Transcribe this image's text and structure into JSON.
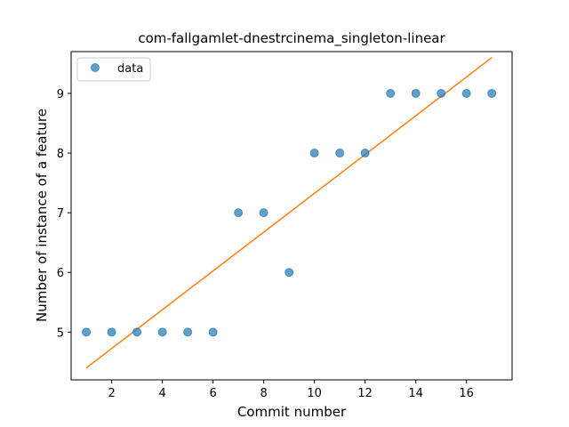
{
  "chart_data": {
    "type": "scatter",
    "title": "com-fallgamlet-dnestrcinema_singleton-linear",
    "xlabel": "Commit number",
    "ylabel": "Number of instance of a feature",
    "xlim": [
      0.4,
      17.8
    ],
    "ylim": [
      4.2,
      9.7
    ],
    "xticks": [
      2,
      4,
      6,
      8,
      10,
      12,
      14,
      16
    ],
    "yticks": [
      5,
      6,
      7,
      8,
      9
    ],
    "grid": false,
    "legend": {
      "placement": "top-left",
      "entries": [
        "data"
      ]
    },
    "series": [
      {
        "name": "data",
        "kind": "points",
        "color": "#1f77b4",
        "x": [
          1,
          2,
          3,
          4,
          5,
          6,
          7,
          8,
          9,
          10,
          11,
          12,
          13,
          14,
          15,
          16,
          17
        ],
        "y": [
          5,
          5,
          5,
          5,
          5,
          5,
          7,
          7,
          6,
          8,
          8,
          8,
          9,
          9,
          9,
          9,
          9
        ]
      },
      {
        "kind": "line",
        "color": "#ff7f0e",
        "x": [
          1,
          17
        ],
        "y": [
          4.4,
          9.6
        ]
      }
    ]
  }
}
